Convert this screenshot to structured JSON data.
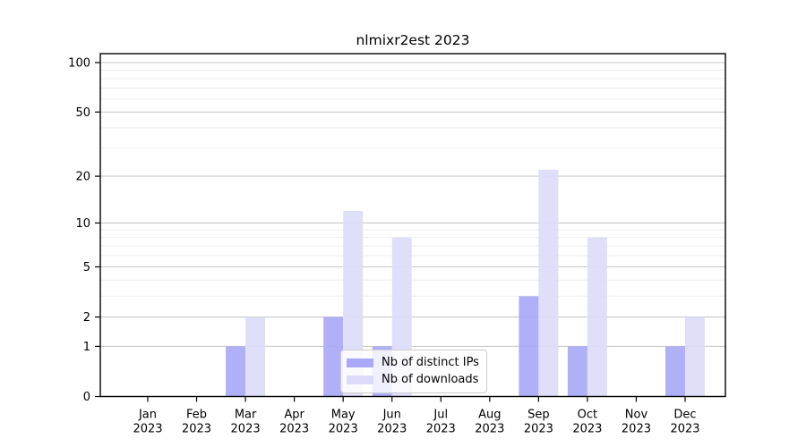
{
  "title": "nlmixr2est 2023",
  "legend": {
    "items": [
      {
        "label": "Nb of distinct IPs",
        "color": "#a9a9f8"
      },
      {
        "label": "Nb of downloads",
        "color": "#dcdcfa"
      }
    ]
  },
  "chart_data": {
    "type": "bar",
    "title": "nlmixr2est 2023",
    "categories": [
      "Jan",
      "Feb",
      "Mar",
      "Apr",
      "May",
      "Jun",
      "Jul",
      "Aug",
      "Sep",
      "Oct",
      "Nov",
      "Dec"
    ],
    "category_year_label": "2023",
    "series": [
      {
        "name": "Nb of distinct IPs",
        "color": "#a9a9f8",
        "values": [
          0,
          0,
          1,
          0,
          2,
          1,
          0,
          0,
          3,
          1,
          0,
          1
        ]
      },
      {
        "name": "Nb of downloads",
        "color": "#dcdcfa",
        "values": [
          0,
          0,
          2,
          0,
          12,
          8,
          0,
          0,
          22,
          8,
          0,
          2
        ]
      }
    ],
    "yscale": "log1p",
    "ylim": [
      0,
      113
    ],
    "y_tick_labels": [
      0,
      1,
      2,
      5,
      10,
      20,
      50,
      100
    ],
    "y_major_gridlines": [
      1,
      2,
      5,
      10,
      20,
      50,
      100
    ],
    "y_minor_gridlines": [
      3,
      4,
      6,
      7,
      8,
      9,
      30,
      40,
      60,
      70,
      80,
      90
    ],
    "grid": true,
    "legend_position": "lower-center-inside",
    "colors": {
      "major_grid": "#c9c9c9",
      "minor_grid": "#ededed",
      "axis": "#000000",
      "tick_text": "#000000"
    }
  }
}
